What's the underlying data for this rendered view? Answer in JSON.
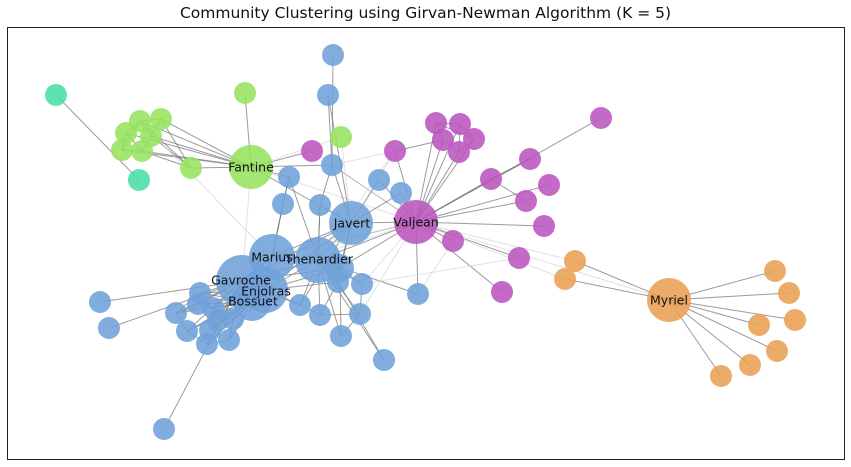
{
  "title": "Community Clustering using Girvan-Newman Algorithm (K = 5)",
  "communities": [
    {
      "id": "blue",
      "color": "#6fa1d9"
    },
    {
      "id": "purple",
      "color": "#bb55bf"
    },
    {
      "id": "green",
      "color": "#96e35f"
    },
    {
      "id": "orange",
      "color": "#e9a052"
    },
    {
      "id": "teal",
      "color": "#47dea5"
    }
  ],
  "labels": {
    "fantine": "Fantine",
    "javert": "Javert",
    "valjean": "Valjean",
    "marius": "Marius",
    "thenardier": "Thenardier",
    "gavroche": "Gavroche",
    "enjolras": "Enjolras",
    "bossuet": "Bossuet",
    "myriel": "Myriel"
  },
  "chart_data": {
    "type": "network",
    "title": "Community Clustering using Girvan-Newman Algorithm (K = 5)",
    "k": 5,
    "labeled_nodes": [
      "Fantine",
      "Javert",
      "Valjean",
      "Marius",
      "Thenardier",
      "Gavroche",
      "Enjolras",
      "Bossuet",
      "Myriel"
    ]
  }
}
